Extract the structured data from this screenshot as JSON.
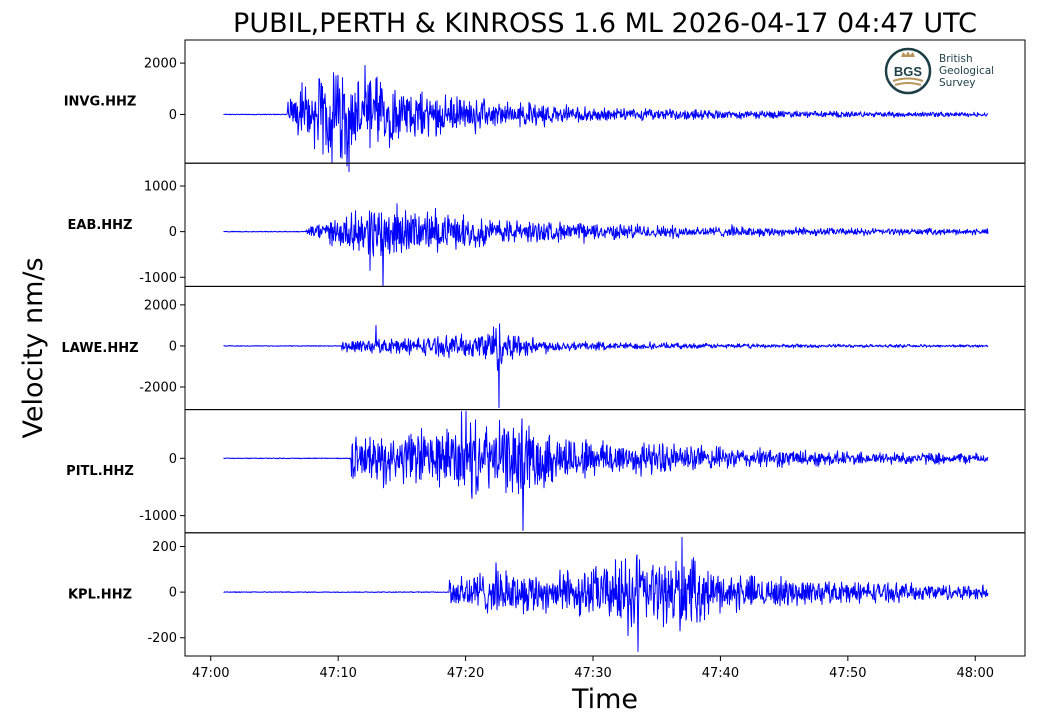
{
  "chart_data": {
    "type": "line",
    "title": "PUBIL,PERTH & KINROSS 1.6 ML   2026-04-17 04:47 UTC",
    "xlabel": "Time",
    "ylabel": "Velocity nm/s",
    "x_range": [
      "47:01",
      "48:01"
    ],
    "x_ticks": [
      "47:00",
      "47:10",
      "47:20",
      "47:30",
      "47:40",
      "47:50",
      "48:00"
    ],
    "grid": false,
    "series_color": "#0000ff",
    "logo": {
      "mark": "BGS",
      "lines": [
        "British",
        "Geological",
        "Survey"
      ]
    },
    "panels": [
      {
        "station": "INVG.HHZ",
        "ylim": [
          -1900,
          2900
        ],
        "y_ticks": [
          {
            "value": 2000,
            "label": "2000"
          },
          {
            "value": 0,
            "label": "0"
          }
        ],
        "onset": "47:06",
        "envelope": [
          [
            "47:06",
            700
          ],
          [
            "47:08",
            1400
          ],
          [
            "47:10.5",
            2700
          ],
          [
            "47:11",
            1600
          ],
          [
            "47:13",
            1700
          ],
          [
            "47:16",
            1000
          ],
          [
            "47:22",
            600
          ],
          [
            "47:30",
            300
          ],
          [
            "47:40",
            200
          ],
          [
            "47:50",
            130
          ],
          [
            "48:01",
            100
          ]
        ],
        "peaks": [
          [
            "47:10.3",
            2780
          ],
          [
            "47:10.3",
            -1700
          ],
          [
            "47:13",
            1400
          ],
          [
            "47:12.5",
            -1300
          ]
        ]
      },
      {
        "station": "EAB.HHZ",
        "ylim": [
          -1200,
          1500
        ],
        "y_ticks": [
          {
            "value": 1000,
            "label": "1000"
          },
          {
            "value": 0,
            "label": "0"
          },
          {
            "value": -1000,
            "label": "-1000"
          }
        ],
        "onset": "47:07.5",
        "envelope": [
          [
            "47:07.5",
            150
          ],
          [
            "47:09",
            280
          ],
          [
            "47:11",
            450
          ],
          [
            "47:13.5",
            800
          ],
          [
            "47:16",
            520
          ],
          [
            "47:20",
            380
          ],
          [
            "47:26",
            260
          ],
          [
            "47:33",
            180
          ],
          [
            "47:40",
            130
          ],
          [
            "47:50",
            90
          ],
          [
            "48:01",
            70
          ]
        ],
        "peaks": [
          [
            "47:13.5",
            1530
          ],
          [
            "47:13.5",
            -1200
          ],
          [
            "47:12.5",
            -850
          ]
        ]
      },
      {
        "station": "LAWE.HHZ",
        "ylim": [
          -3100,
          2900
        ],
        "y_ticks": [
          {
            "value": 2000,
            "label": "2000"
          },
          {
            "value": 0,
            "label": "0"
          },
          {
            "value": -2000,
            "label": "-2000"
          }
        ],
        "onset": "47:10.3",
        "envelope": [
          [
            "47:10.3",
            330
          ],
          [
            "47:13",
            420
          ],
          [
            "47:17",
            520
          ],
          [
            "47:21",
            700
          ],
          [
            "47:22.6",
            1500
          ],
          [
            "47:23.5",
            800
          ],
          [
            "47:26",
            350
          ],
          [
            "47:32",
            200
          ],
          [
            "47:40",
            130
          ],
          [
            "47:50",
            90
          ],
          [
            "48:01",
            70
          ]
        ],
        "peaks": [
          [
            "47:22.6",
            2700
          ],
          [
            "47:22.6",
            -3000
          ],
          [
            "47:13",
            1000
          ]
        ]
      },
      {
        "station": "PITL.HHZ",
        "ylim": [
          -1300,
          850
        ],
        "y_ticks": [
          {
            "value": 0,
            "label": "0"
          },
          {
            "value": -1000,
            "label": "-1000"
          }
        ],
        "onset": "47:11",
        "envelope": [
          [
            "47:11",
            420
          ],
          [
            "47:14",
            480
          ],
          [
            "47:18",
            600
          ],
          [
            "47:20",
            730
          ],
          [
            "47:22",
            650
          ],
          [
            "47:24.5",
            800
          ],
          [
            "47:27",
            500
          ],
          [
            "47:32",
            370
          ],
          [
            "47:40",
            220
          ],
          [
            "47:50",
            140
          ],
          [
            "48:01",
            100
          ]
        ],
        "peaks": [
          [
            "47:20",
            820
          ],
          [
            "47:24.5",
            760
          ],
          [
            "47:24.5",
            -1260
          ],
          [
            "47:20.5",
            -700
          ]
        ]
      },
      {
        "station": "KPL.HHZ",
        "ylim": [
          -280,
          260
        ],
        "y_ticks": [
          {
            "value": 200,
            "label": "200"
          },
          {
            "value": 0,
            "label": "0"
          },
          {
            "value": -200,
            "label": "-200"
          }
        ],
        "onset": "47:18.7",
        "envelope": [
          [
            "47:18.7",
            100
          ],
          [
            "47:22",
            110
          ],
          [
            "47:27",
            100
          ],
          [
            "47:31",
            140
          ],
          [
            "47:33.5",
            210
          ],
          [
            "47:35",
            150
          ],
          [
            "47:37",
            190
          ],
          [
            "47:40",
            95
          ],
          [
            "47:47",
            65
          ],
          [
            "47:55",
            45
          ],
          [
            "48:01",
            35
          ]
        ],
        "peaks": [
          [
            "47:33.5",
            245
          ],
          [
            "47:33.5",
            -260
          ],
          [
            "47:37",
            240
          ],
          [
            "47:36.8",
            -170
          ]
        ]
      }
    ]
  }
}
